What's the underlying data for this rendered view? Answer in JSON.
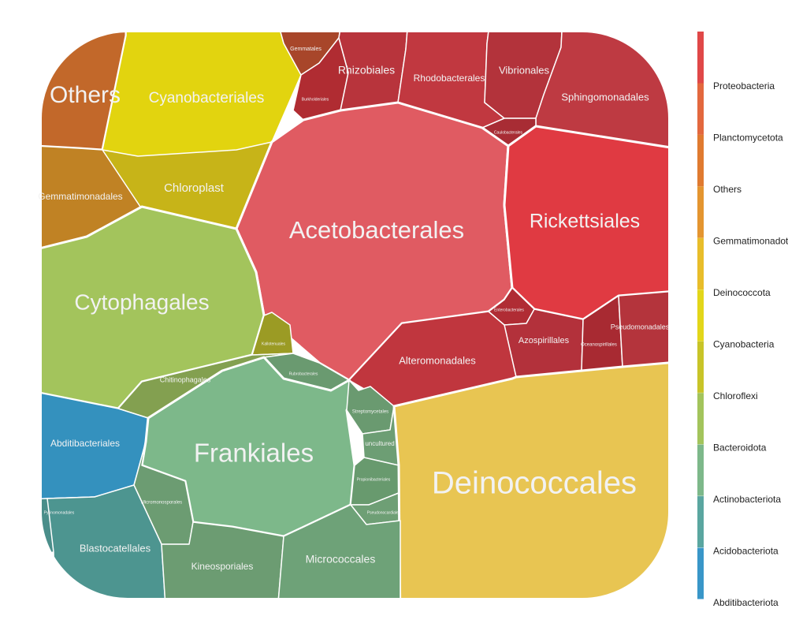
{
  "chart_data": {
    "type": "voronoi-treemap",
    "legend": {
      "position": "right",
      "entries": [
        {
          "name": "Proteobacteria",
          "color": "#e04848"
        },
        {
          "name": "Planctomycetota",
          "color": "#e3683e"
        },
        {
          "name": "Others",
          "color": "#e07a30"
        },
        {
          "name": "Gemmatimonadota",
          "color": "#e49530"
        },
        {
          "name": "Deinococcota",
          "color": "#e8bd2a"
        },
        {
          "name": "Cyanobacteria",
          "color": "#e2d61a"
        },
        {
          "name": "Chloroflexi",
          "color": "#c8c428"
        },
        {
          "name": "Bacteroidota",
          "color": "#a3c45c"
        },
        {
          "name": "Actinobacteriota",
          "color": "#7db88a"
        },
        {
          "name": "Acidobacteriota",
          "color": "#5aa6a0"
        },
        {
          "name": "Abditibacteriota",
          "color": "#3996c8"
        }
      ]
    },
    "cells": [
      {
        "label": "Others",
        "phylum": "Others",
        "size": 40,
        "color": "#c2682a"
      },
      {
        "label": "Cyanobacteriales",
        "phylum": "Cyanobacteria",
        "size": 20,
        "color": "#e2d40f"
      },
      {
        "label": "Gemmatales",
        "phylum": "Planctomycetota",
        "size": 6,
        "color": "#a8462a"
      },
      {
        "label": "Burkholderiales",
        "phylum": "Proteobacteria",
        "size": 4,
        "color": "#b02c32"
      },
      {
        "label": "Rhizobiales",
        "phylum": "Proteobacteria",
        "size": 15,
        "color": "#b8343c"
      },
      {
        "label": "Rhodobacterales",
        "phylum": "Proteobacteria",
        "size": 15,
        "color": "#c13840"
      },
      {
        "label": "Vibrionales",
        "phylum": "Proteobacteria",
        "size": 15,
        "color": "#b3333b"
      },
      {
        "label": "Sphingomonadales",
        "phylum": "Proteobacteria",
        "size": 16,
        "color": "#be3a42"
      },
      {
        "label": "Caulobacterales",
        "phylum": "Proteobacteria",
        "size": 4,
        "color": "#a82c34"
      },
      {
        "label": "Gemmatimonadales",
        "phylum": "Gemmatimonadota",
        "size": 15,
        "color": "#c08224"
      },
      {
        "label": "Chloroplast",
        "phylum": "Cyanobacteria",
        "size": 16,
        "color": "#c7b418"
      },
      {
        "label": "Acetobacterales",
        "phylum": "Proteobacteria",
        "size": 35,
        "color": "#e05b62"
      },
      {
        "label": "Rickettsiales",
        "phylum": "Proteobacteria",
        "size": 23,
        "color": "#e03a42"
      },
      {
        "label": "Cytophagales",
        "phylum": "Bacteroidota",
        "size": 30,
        "color": "#a3c45c"
      },
      {
        "label": "Kallotenuales",
        "phylum": "Chloroflexi",
        "size": 5,
        "color": "#9b9b24"
      },
      {
        "label": "Enterobacterales",
        "phylum": "Proteobacteria",
        "size": 4,
        "color": "#b02c34"
      },
      {
        "label": "Azospirillales",
        "phylum": "Proteobacteria",
        "size": 15,
        "color": "#b3313b"
      },
      {
        "label": "Oceanospirillales",
        "phylum": "Proteobacteria",
        "size": 10,
        "color": "#a82a32"
      },
      {
        "label": "Pseudomonadales",
        "phylum": "Proteobacteria",
        "size": 12,
        "color": "#b4343c"
      },
      {
        "label": "Alteromonadales",
        "phylum": "Proteobacteria",
        "size": 18,
        "color": "#c0363e"
      },
      {
        "label": "Chitinophagales",
        "phylum": "Bacteroidota",
        "size": 13,
        "color": "#83a050"
      },
      {
        "label": "Rubrobacterales",
        "phylum": "Actinobacteriota",
        "size": 6,
        "color": "#6a9a70"
      },
      {
        "label": "Abditibacteriales",
        "phylum": "Abditibacteriota",
        "size": 18,
        "color": "#3491be"
      },
      {
        "label": "Frankiales",
        "phylum": "Actinobacteriota",
        "size": 30,
        "color": "#7db88a"
      },
      {
        "label": "Streptomycetales",
        "phylum": "Actinobacteriota",
        "size": 4,
        "color": "#6a9a70"
      },
      {
        "label": "uncultured",
        "phylum": "Actinobacteriota",
        "size": 4,
        "color": "#6d9e74"
      },
      {
        "label": "Propionibacteriales",
        "phylum": "Actinobacteriota",
        "size": 5,
        "color": "#689a6e"
      },
      {
        "label": "Pseudonocardiales",
        "phylum": "Actinobacteriota",
        "size": 4,
        "color": "#6e9f75"
      },
      {
        "label": "Deinococcales",
        "phylum": "Deinococcota",
        "size": 45,
        "color": "#e8c552"
      },
      {
        "label": "Micromonosporales",
        "phylum": "Actinobacteriota",
        "size": 10,
        "color": "#6c9c72"
      },
      {
        "label": "Pyrinomonadales",
        "phylum": "Acidobacteriota",
        "size": 3,
        "color": "#4a8e8a"
      },
      {
        "label": "Blastocatellales",
        "phylum": "Acidobacteriota",
        "size": 18,
        "color": "#4d9590"
      },
      {
        "label": "Kineosporiales",
        "phylum": "Actinobacteriota",
        "size": 15,
        "color": "#6c9c72"
      },
      {
        "label": "Micrococcales",
        "phylum": "Actinobacteriota",
        "size": 20,
        "color": "#6ea278"
      }
    ]
  }
}
